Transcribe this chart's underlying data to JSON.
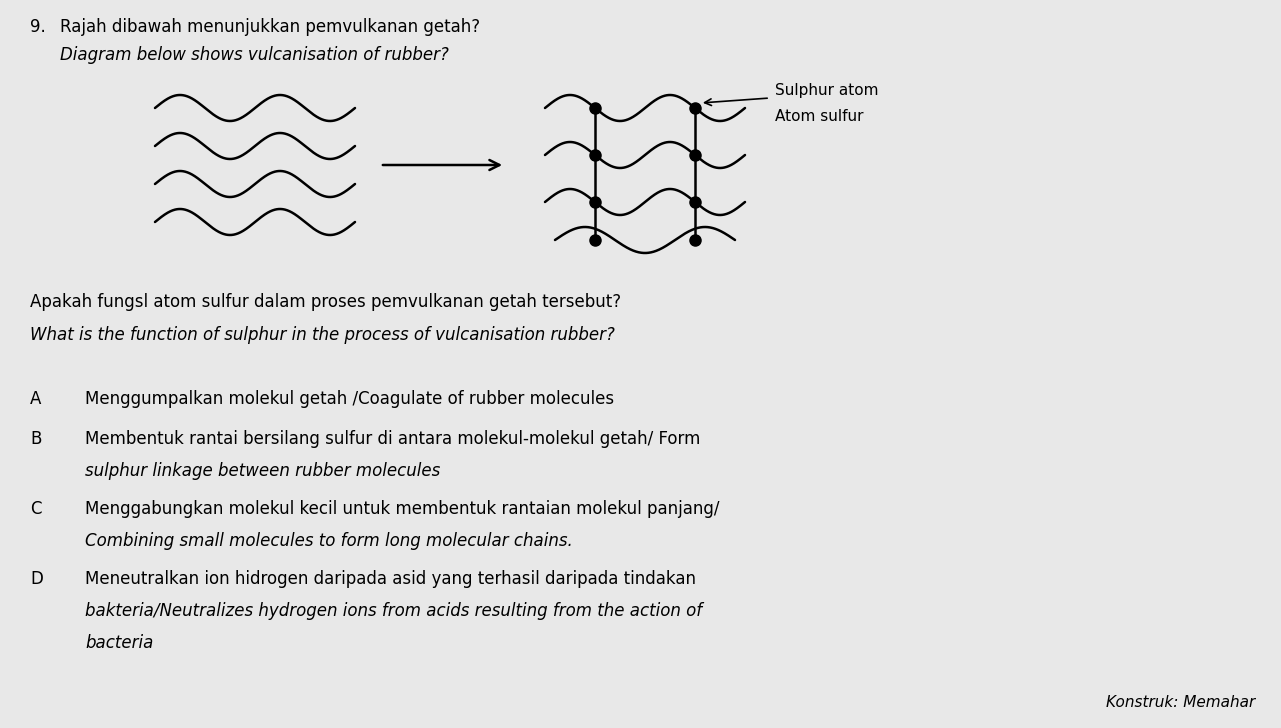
{
  "bg_color": "#e8e8e8",
  "title_number": "9.",
  "title_malay": "Rajah dibawah menunjukkan pemvulkanan getah?",
  "title_english": "Diagram below shows vulcanisation of rubber?",
  "question_malay": "Apakah fungsl atom sulfur dalam proses pemvulkanan getah tersebut?",
  "question_english": "What is the function of sulphur in the process of vulcanisation rubber?",
  "options": [
    {
      "letter": "A",
      "line1": "Menggumpalkan molekul getah /Coagulate of rubber molecules",
      "line2": null,
      "italic2": false
    },
    {
      "letter": "B",
      "line1": "Membentuk rantai bersilang sulfur di antara molekul-molekul getah/ Form",
      "line2": "sulphur linkage between rubber molecules",
      "italic2": true
    },
    {
      "letter": "C",
      "line1": "Menggabungkan molekul kecil untuk membentuk rantaian molekul panjang/",
      "line2": "Combining small molecules to form long molecular chains.",
      "italic2": true
    },
    {
      "letter": "D",
      "line1": "Meneutralkan ion hidrogen daripada asid yang terhasil daripada tindakan",
      "line2": "bakteria/Neutralizes hydrogen ions from acids resulting from the action of",
      "line3": "bacteria",
      "italic2": true
    }
  ],
  "label_english": "Sulphur atom",
  "label_malay": "Atom sulfur",
  "footer_right": "Konstruk: Memahar"
}
